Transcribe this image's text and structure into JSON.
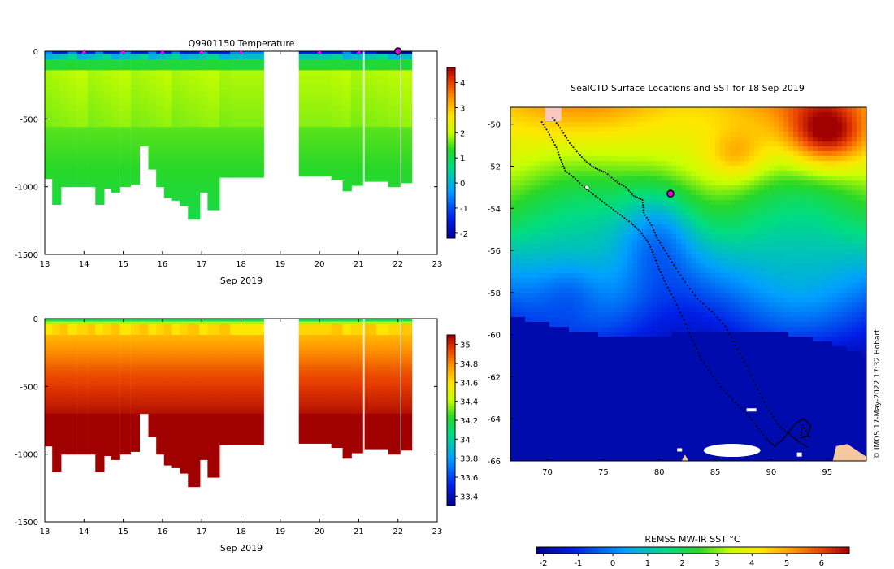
{
  "chart_data": [
    {
      "id": "temperature",
      "type": "heatmap",
      "title": "Q9901150  Temperature",
      "xlabel": "Sep 2019",
      "ylabel": "",
      "xlim": [
        13,
        23
      ],
      "ylim": [
        -1500,
        0
      ],
      "xticks": [
        "13",
        "14",
        "15",
        "16",
        "17",
        "18",
        "19",
        "20",
        "21",
        "22",
        "23"
      ],
      "yticks": [
        "0",
        "-500",
        "-1000",
        "-1500"
      ],
      "colorbar": {
        "min": -2.2,
        "max": 4.6,
        "ticks": [
          "-2",
          "-1",
          "0",
          "1",
          "2",
          "3",
          "4"
        ]
      },
      "markers_x": [
        14,
        15,
        16,
        17,
        18,
        20,
        21
      ],
      "highlight_x": 22,
      "profiles": [
        {
          "t": 13.1,
          "w": 0.22,
          "depth": 940
        },
        {
          "t": 13.3,
          "w": 0.22,
          "depth": 1130
        },
        {
          "t": 13.5,
          "w": 0.22,
          "depth": 1000
        },
        {
          "t": 13.7,
          "w": 0.22,
          "depth": 1000
        },
        {
          "t": 13.95,
          "w": 0.26,
          "depth": 1000
        },
        {
          "t": 14.2,
          "w": 0.22,
          "depth": 1000
        },
        {
          "t": 14.4,
          "w": 0.22,
          "depth": 1130
        },
        {
          "t": 14.6,
          "w": 0.22,
          "depth": 1010
        },
        {
          "t": 14.8,
          "w": 0.22,
          "depth": 1040
        },
        {
          "t": 15.05,
          "w": 0.26,
          "depth": 1000
        },
        {
          "t": 15.3,
          "w": 0.22,
          "depth": 980
        },
        {
          "t": 15.52,
          "w": 0.22,
          "depth": 700
        },
        {
          "t": 15.75,
          "w": 0.22,
          "depth": 870
        },
        {
          "t": 15.95,
          "w": 0.22,
          "depth": 1000
        },
        {
          "t": 16.15,
          "w": 0.22,
          "depth": 1080
        },
        {
          "t": 16.35,
          "w": 0.22,
          "depth": 1100
        },
        {
          "t": 16.55,
          "w": 0.22,
          "depth": 1140
        },
        {
          "t": 16.8,
          "w": 0.3,
          "depth": 1240
        },
        {
          "t": 17.05,
          "w": 0.22,
          "depth": 1040
        },
        {
          "t": 17.3,
          "w": 0.3,
          "depth": 1170
        },
        {
          "t": 17.6,
          "w": 0.3,
          "depth": 930
        },
        {
          "t": 18.15,
          "w": 0.85,
          "depth": 930
        },
        {
          "t": 19.9,
          "w": 0.85,
          "depth": 920
        },
        {
          "t": 20.45,
          "w": 0.3,
          "depth": 950
        },
        {
          "t": 20.7,
          "w": 0.22,
          "depth": 1030
        },
        {
          "t": 20.95,
          "w": 0.3,
          "depth": 990
        },
        {
          "t": 21.3,
          "w": 0.3,
          "depth": 960
        },
        {
          "t": 21.6,
          "w": 0.3,
          "depth": 960
        },
        {
          "t": 21.9,
          "w": 0.3,
          "depth": 1000
        },
        {
          "t": 22.22,
          "w": 0.26,
          "depth": 970
        }
      ]
    },
    {
      "id": "salinity",
      "type": "heatmap",
      "title": "",
      "xlabel": "Sep 2019",
      "ylabel": "",
      "xlim": [
        13,
        23
      ],
      "ylim": [
        -1500,
        0
      ],
      "xticks": [
        "13",
        "14",
        "15",
        "16",
        "17",
        "18",
        "19",
        "20",
        "21",
        "22",
        "23"
      ],
      "yticks": [
        "0",
        "-500",
        "-1000",
        "-1500"
      ],
      "colorbar": {
        "min": 33.3,
        "max": 35.1,
        "ticks": [
          "33.4",
          "33.6",
          "33.8",
          "34",
          "34.2",
          "34.4",
          "34.6",
          "34.8",
          "35"
        ]
      },
      "profiles_ref": "temperature"
    },
    {
      "id": "sst_map",
      "type": "heatmap",
      "title": "SealCTD Surface Locations and SST for 18 Sep 2019",
      "xlabel": "",
      "ylabel": "",
      "xlim": [
        66.7,
        98.5
      ],
      "ylim": [
        -66,
        -49.2
      ],
      "xticks": [
        "70",
        "75",
        "80",
        "85",
        "90",
        "95"
      ],
      "yticks": [
        "-50",
        "-52",
        "-54",
        "-56",
        "-58",
        "-60",
        "-62",
        "-64",
        "-66"
      ],
      "colorbar": {
        "label": "REMSS MW-IR SST °C",
        "min": -2.2,
        "max": 6.8,
        "ticks": [
          "-2",
          "-1",
          "0",
          "1",
          "2",
          "3",
          "4",
          "5",
          "6"
        ]
      },
      "current_position": {
        "lon": 81,
        "lat": -53.3
      },
      "track": [
        [
          69.5,
          -49.9
        ],
        [
          70.2,
          -50.5
        ],
        [
          70.8,
          -51.1
        ],
        [
          71.2,
          -51.7
        ],
        [
          71.6,
          -52.2
        ],
        [
          72.5,
          -52.6
        ],
        [
          73.5,
          -53.1
        ],
        [
          74.5,
          -53.5
        ],
        [
          75.5,
          -53.9
        ],
        [
          76.5,
          -54.3
        ],
        [
          77.5,
          -54.7
        ],
        [
          78.3,
          -55.1
        ],
        [
          79.0,
          -55.6
        ],
        [
          79.5,
          -56.2
        ],
        [
          80.0,
          -56.9
        ],
        [
          80.6,
          -57.6
        ],
        [
          81.4,
          -58.4
        ],
        [
          82.2,
          -59.3
        ],
        [
          83.0,
          -60.3
        ],
        [
          83.8,
          -61.2
        ],
        [
          84.8,
          -62.0
        ],
        [
          86.0,
          -62.8
        ],
        [
          87.3,
          -63.5
        ],
        [
          88.5,
          -64.2
        ],
        [
          89.5,
          -64.9
        ],
        [
          90.3,
          -65.3
        ],
        [
          91.0,
          -65.0
        ],
        [
          91.6,
          -64.6
        ],
        [
          92.2,
          -64.2
        ],
        [
          92.9,
          -64.0
        ],
        [
          93.5,
          -64.3
        ],
        [
          93.3,
          -64.8
        ],
        [
          92.6,
          -64.9
        ],
        [
          92.8,
          -64.3
        ],
        [
          93.6,
          -65.0
        ]
      ],
      "track2": [
        [
          70.5,
          -49.7
        ],
        [
          71.3,
          -50.3
        ],
        [
          72.0,
          -50.9
        ],
        [
          72.8,
          -51.4
        ],
        [
          73.5,
          -51.8
        ],
        [
          74.3,
          -52.1
        ],
        [
          75.2,
          -52.3
        ],
        [
          76.1,
          -52.7
        ],
        [
          77.0,
          -53.0
        ],
        [
          77.7,
          -53.4
        ],
        [
          78.5,
          -53.6
        ],
        [
          78.6,
          -54.2
        ],
        [
          79.3,
          -54.8
        ],
        [
          79.8,
          -55.4
        ],
        [
          80.5,
          -56.0
        ],
        [
          81.3,
          -56.7
        ],
        [
          82.3,
          -57.5
        ],
        [
          83.4,
          -58.3
        ],
        [
          84.7,
          -58.9
        ],
        [
          85.9,
          -59.6
        ],
        [
          86.8,
          -60.5
        ],
        [
          87.8,
          -61.5
        ],
        [
          88.8,
          -62.6
        ],
        [
          89.8,
          -63.6
        ],
        [
          90.8,
          -64.4
        ],
        [
          91.8,
          -64.8
        ],
        [
          92.5,
          -65.1
        ],
        [
          93.4,
          -65.4
        ]
      ]
    }
  ],
  "credit": "© IMOS 17-May-2022 17:32 Hobart"
}
